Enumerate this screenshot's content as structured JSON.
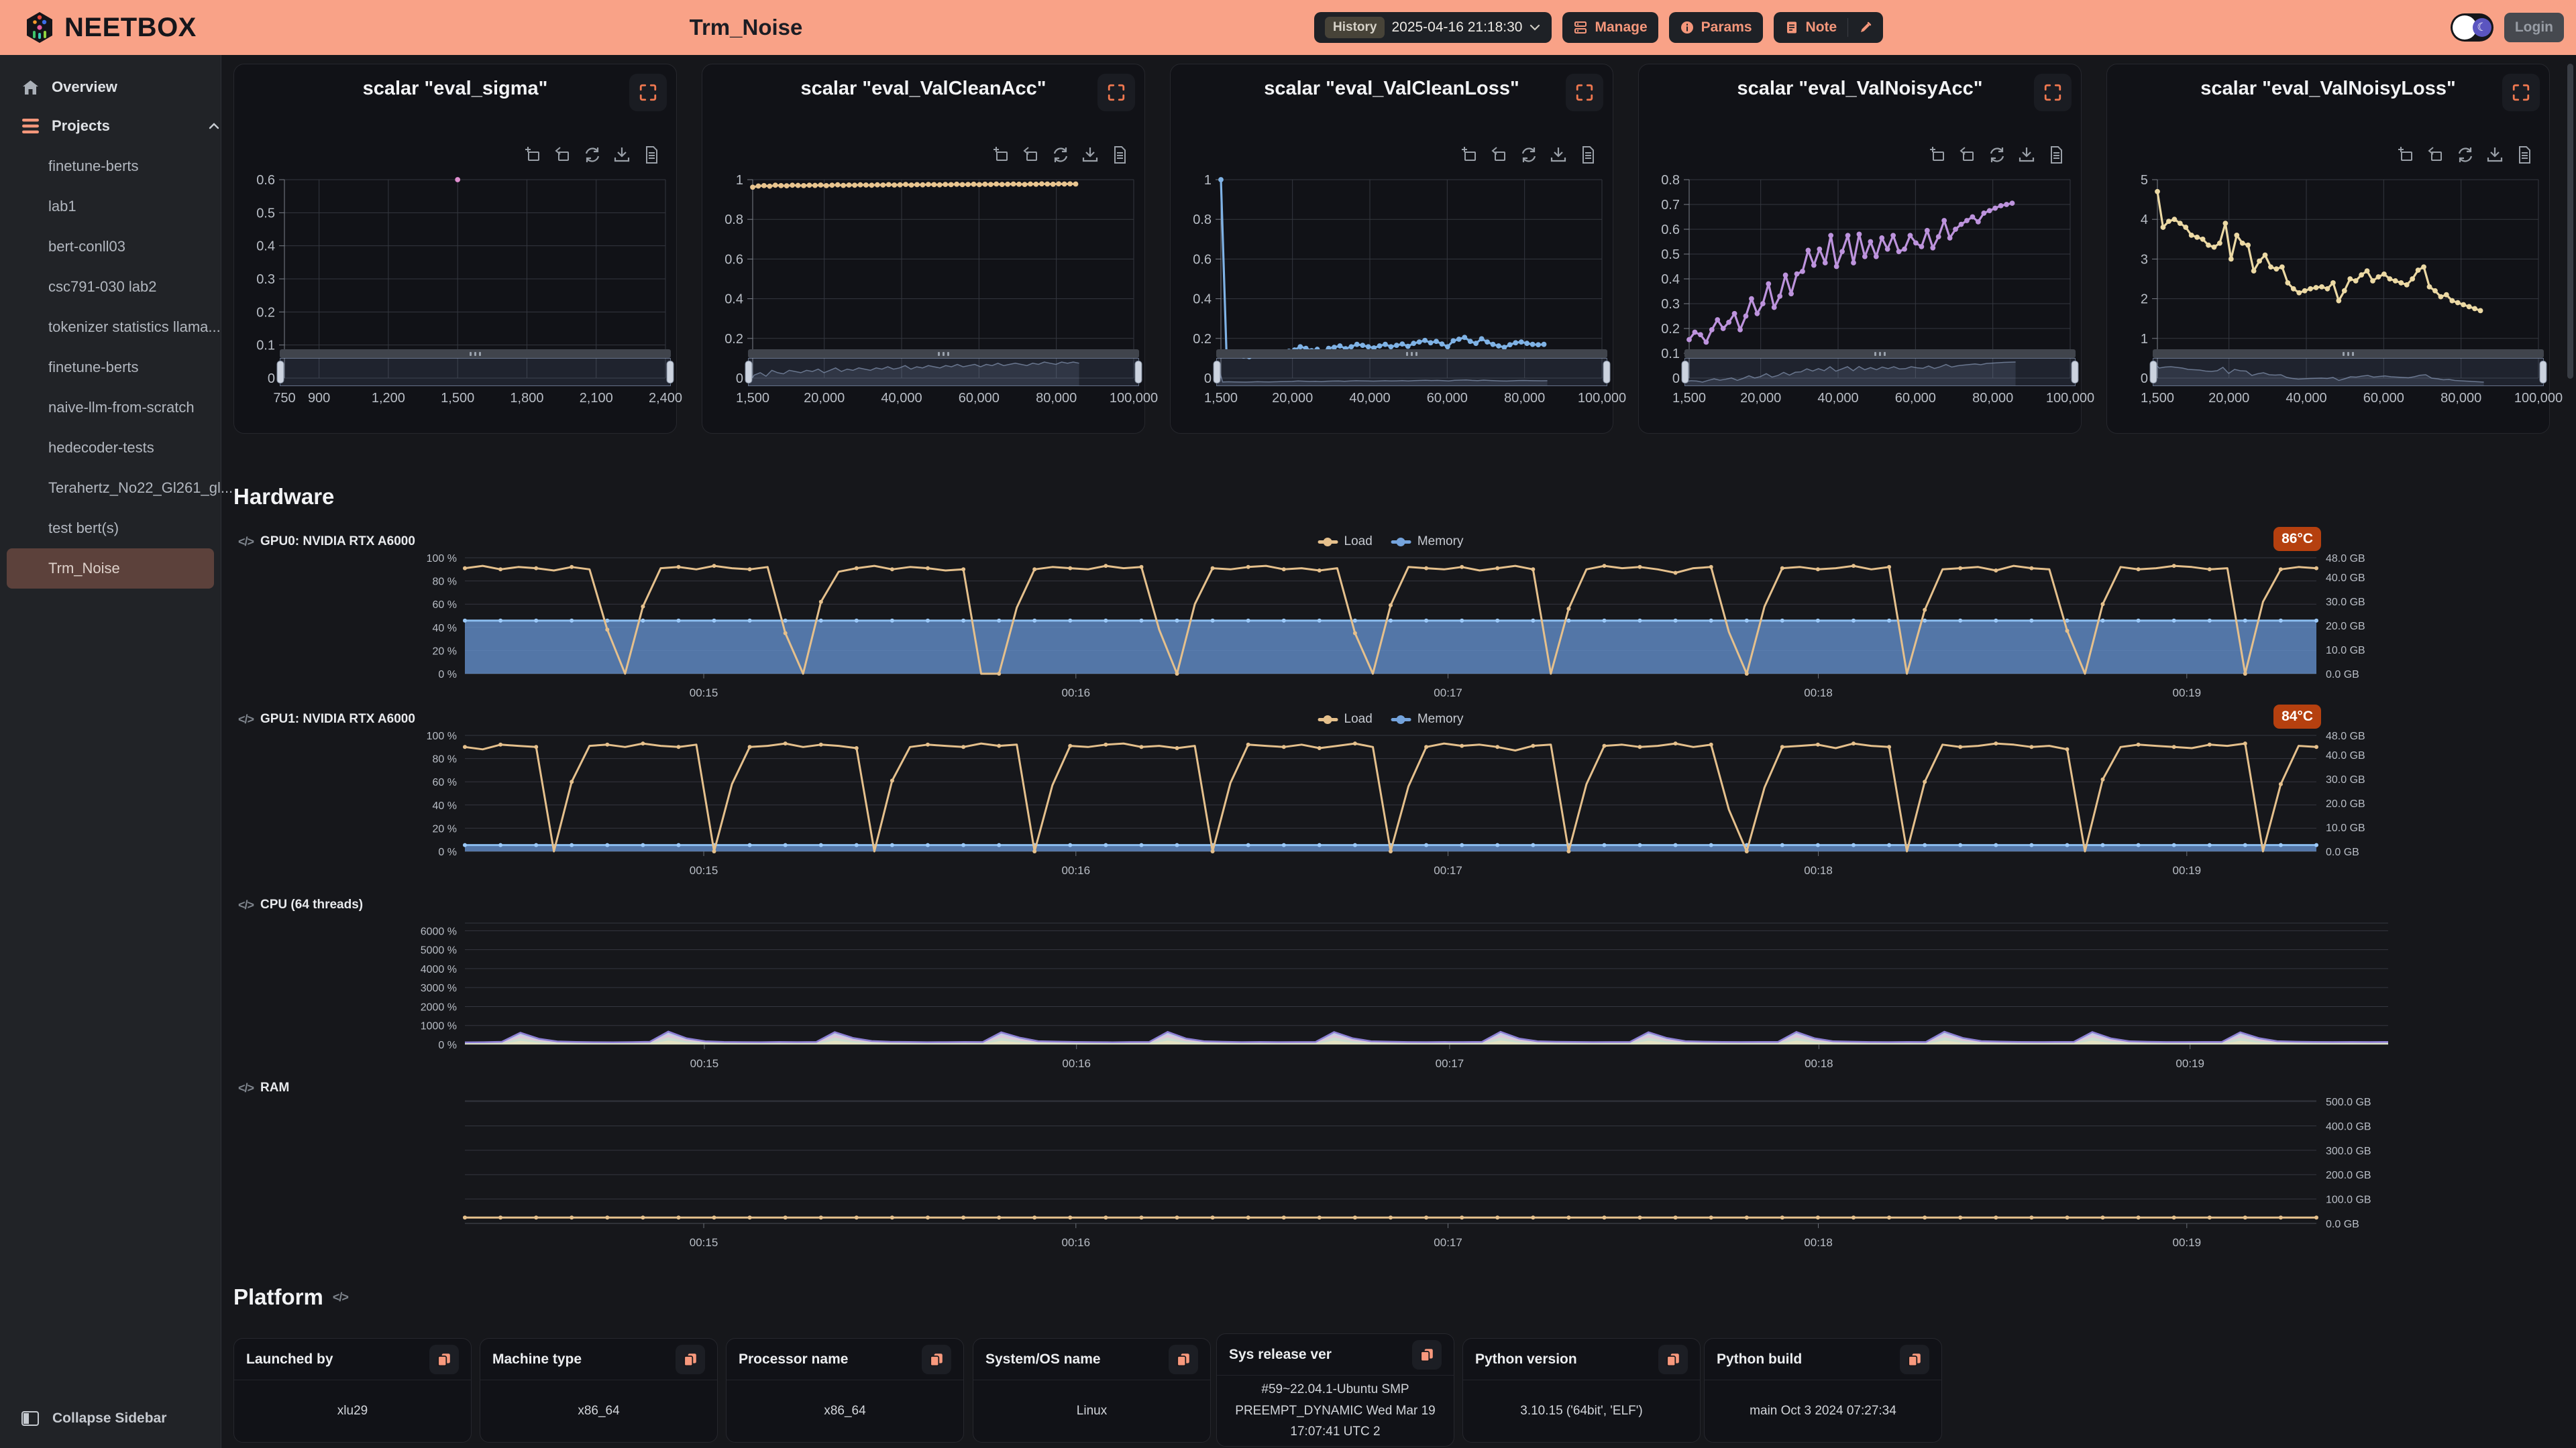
{
  "theme": {
    "header_bg": "#f9a287",
    "accent": "#f5977b",
    "temp_badge_bg": "#b5400f",
    "sidebar_bg": "#212327",
    "page_bg": "#16171b"
  },
  "header": {
    "brand": "NEETBOX",
    "title": "Trm_Noise",
    "history_label": "History",
    "history_value": "2025-04-16 21:18:30",
    "manage_label": "Manage",
    "params_label": "Params",
    "note_label": "Note",
    "login_label": "Login"
  },
  "sidebar": {
    "overview": "Overview",
    "projects_label": "Projects",
    "projects": [
      "finetune-berts",
      "lab1",
      "bert-conll03",
      "csc791-030 lab2",
      "tokenizer statistics llama...",
      "finetune-berts",
      "naive-llm-from-scratch",
      "hedecoder-tests",
      "Terahertz_No22_Gl261_gl...",
      "test bert(s)",
      "Trm_Noise"
    ],
    "selected": "Trm_Noise",
    "collapse": "Collapse Sidebar"
  },
  "sections": {
    "hardware": "Hardware",
    "platform": "Platform"
  },
  "hardware": {
    "gpu0": {
      "label": "GPU0: NVIDIA RTX A6000",
      "temp": "86°C",
      "legend_items": [
        {
          "label": "Load",
          "color": "#e5c08c"
        },
        {
          "label": "Memory",
          "color": "#74a3dc"
        }
      ]
    },
    "gpu1": {
      "label": "GPU1: NVIDIA RTX A6000",
      "temp": "84°C",
      "legend_items": [
        {
          "label": "Load",
          "color": "#e5c08c"
        },
        {
          "label": "Memory",
          "color": "#74a3dc"
        }
      ]
    },
    "cpu": {
      "label": "CPU (64 threads)"
    },
    "ram": {
      "label": "RAM"
    }
  },
  "platform": {
    "cards": [
      {
        "title": "Launched by",
        "value": "xlu29"
      },
      {
        "title": "Machine type",
        "value": "x86_64"
      },
      {
        "title": "Processor name",
        "value": "x86_64"
      },
      {
        "title": "System/OS name",
        "value": "Linux"
      },
      {
        "title": "Sys release ver",
        "value": "#59~22.04.1-Ubuntu SMP PREEMPT_DYNAMIC Wed Mar 19 17:07:41 UTC 2"
      },
      {
        "title": "Python version",
        "value": "3.10.15 ('64bit', 'ELF')"
      },
      {
        "title": "Python build",
        "value": "main Oct 3 2024 07:27:34"
      }
    ]
  },
  "chart_data": [
    {
      "id": "eval_sigma",
      "kind": "scalar",
      "type": "scatter",
      "title": "scalar \"eval_sigma\"",
      "x_range": [
        750,
        2400
      ],
      "x_ticks": [
        750,
        900,
        1200,
        1500,
        1800,
        2100,
        2400
      ],
      "y_range": [
        0,
        0.6
      ],
      "y_ticks": [
        0,
        0.1,
        0.2,
        0.3,
        0.4,
        0.5,
        0.6
      ],
      "series": [
        {
          "name": "eval_sigma",
          "color": "#e08fd0",
          "points": [
            [
              1500,
              0.6
            ]
          ]
        }
      ]
    },
    {
      "id": "eval_ValCleanAcc",
      "kind": "scalar",
      "type": "line",
      "title": "scalar \"eval_ValCleanAcc\"",
      "x_range": [
        1500,
        100000
      ],
      "x_ticks": [
        1500,
        20000,
        40000,
        60000,
        80000,
        100000
      ],
      "y_range": [
        0,
        1
      ],
      "y_ticks": [
        0,
        0.2,
        0.4,
        0.6,
        0.8,
        1
      ],
      "series": [
        {
          "name": "eval_ValCleanAcc",
          "color": "#e8c48f",
          "x_start": 1500,
          "x_step": 1465,
          "values": [
            0.962,
            0.968,
            0.97,
            0.967,
            0.972,
            0.97,
            0.969,
            0.972,
            0.971,
            0.97,
            0.972,
            0.971,
            0.973,
            0.97,
            0.972,
            0.974,
            0.971,
            0.973,
            0.972,
            0.974,
            0.973,
            0.972,
            0.974,
            0.973,
            0.975,
            0.973,
            0.974,
            0.976,
            0.973,
            0.975,
            0.974,
            0.976,
            0.975,
            0.974,
            0.976,
            0.975,
            0.977,
            0.975,
            0.976,
            0.977,
            0.975,
            0.977,
            0.976,
            0.978,
            0.976,
            0.977,
            0.978,
            0.977,
            0.976,
            0.978,
            0.977,
            0.979,
            0.978,
            0.977,
            0.979,
            0.978,
            0.979,
            0.978
          ]
        }
      ]
    },
    {
      "id": "eval_ValCleanLoss",
      "kind": "scalar",
      "type": "line",
      "title": "scalar \"eval_ValCleanLoss\"",
      "x_range": [
        1500,
        100000
      ],
      "x_ticks": [
        1500,
        20000,
        40000,
        60000,
        80000,
        100000
      ],
      "y_range": [
        0,
        1
      ],
      "y_ticks": [
        0,
        0.2,
        0.4,
        0.6,
        0.8,
        1
      ],
      "series": [
        {
          "name": "eval_ValCleanLoss",
          "color": "#7fb2e5",
          "x_start": 1500,
          "x_step": 1465,
          "values": [
            1.0,
            0.115,
            0.122,
            0.118,
            0.112,
            0.108,
            0.118,
            0.125,
            0.12,
            0.115,
            0.122,
            0.128,
            0.135,
            0.142,
            0.158,
            0.15,
            0.138,
            0.145,
            0.132,
            0.15,
            0.155,
            0.162,
            0.148,
            0.158,
            0.17,
            0.165,
            0.158,
            0.152,
            0.162,
            0.17,
            0.158,
            0.165,
            0.172,
            0.16,
            0.175,
            0.182,
            0.19,
            0.178,
            0.185,
            0.172,
            0.158,
            0.188,
            0.196,
            0.205,
            0.185,
            0.175,
            0.198,
            0.182,
            0.17,
            0.162,
            0.155,
            0.168,
            0.178,
            0.182,
            0.175,
            0.17,
            0.168,
            0.17
          ]
        }
      ]
    },
    {
      "id": "eval_ValNoisyAcc",
      "kind": "scalar",
      "type": "line",
      "title": "scalar \"eval_ValNoisyAcc\"",
      "x_range": [
        1500,
        100000
      ],
      "x_ticks": [
        1500,
        20000,
        40000,
        60000,
        80000,
        100000
      ],
      "y_range": [
        0,
        0.8
      ],
      "y_ticks": [
        0,
        0.1,
        0.2,
        0.3,
        0.4,
        0.5,
        0.6,
        0.7,
        0.8
      ],
      "series": [
        {
          "name": "eval_ValNoisyAcc",
          "color": "#bd93dd",
          "x_start": 1500,
          "x_step": 1465,
          "values": [
            0.155,
            0.185,
            0.175,
            0.145,
            0.195,
            0.235,
            0.2,
            0.225,
            0.26,
            0.195,
            0.25,
            0.32,
            0.26,
            0.3,
            0.38,
            0.285,
            0.33,
            0.415,
            0.34,
            0.42,
            0.43,
            0.515,
            0.455,
            0.52,
            0.465,
            0.575,
            0.45,
            0.51,
            0.575,
            0.465,
            0.58,
            0.49,
            0.55,
            0.49,
            0.565,
            0.52,
            0.575,
            0.51,
            0.52,
            0.575,
            0.545,
            0.53,
            0.595,
            0.525,
            0.57,
            0.635,
            0.565,
            0.6,
            0.62,
            0.635,
            0.65,
            0.63,
            0.665,
            0.675,
            0.685,
            0.695,
            0.7,
            0.705
          ]
        }
      ]
    },
    {
      "id": "eval_ValNoisyLoss",
      "kind": "scalar",
      "type": "line",
      "title": "scalar \"eval_ValNoisyLoss\"",
      "x_range": [
        1500,
        100000
      ],
      "x_ticks": [
        1500,
        20000,
        40000,
        60000,
        80000,
        100000
      ],
      "y_range": [
        0,
        5
      ],
      "y_ticks": [
        0,
        1,
        2,
        3,
        4,
        5
      ],
      "series": [
        {
          "name": "eval_ValNoisyLoss",
          "color": "#ecd9a4",
          "x_start": 1500,
          "x_step": 1465,
          "values": [
            4.7,
            3.8,
            3.95,
            4.0,
            3.9,
            3.8,
            3.6,
            3.55,
            3.5,
            3.35,
            3.3,
            3.4,
            3.9,
            3.0,
            3.6,
            3.4,
            3.35,
            2.7,
            2.95,
            3.1,
            2.8,
            2.75,
            2.8,
            2.4,
            2.25,
            2.15,
            2.2,
            2.25,
            2.28,
            2.3,
            2.25,
            2.4,
            1.95,
            2.2,
            2.5,
            2.45,
            2.6,
            2.7,
            2.45,
            2.55,
            2.62,
            2.5,
            2.45,
            2.4,
            2.35,
            2.5,
            2.72,
            2.8,
            2.3,
            2.2,
            2.05,
            2.1,
            1.95,
            1.9,
            1.85,
            1.8,
            1.75,
            1.7
          ]
        }
      ]
    },
    {
      "id": "gpu0",
      "kind": "hw",
      "type": "line",
      "left": {
        "range": [
          0,
          100
        ],
        "ticks": [
          0,
          20,
          40,
          60,
          80,
          100
        ]
      },
      "right": {
        "range": [
          0,
          48
        ],
        "ticks": [
          0,
          10,
          20,
          30,
          40,
          48
        ]
      },
      "x_ticks": [
        {
          "p": 0.129,
          "label": "00:15"
        },
        {
          "p": 0.33,
          "label": "00:16"
        },
        {
          "p": 0.531,
          "label": "00:17"
        },
        {
          "p": 0.731,
          "label": "00:18"
        },
        {
          "p": 0.93,
          "label": "00:19"
        }
      ],
      "series": [
        {
          "name": "Memory",
          "axis": "right",
          "type": "area",
          "color": "#8bbdf0",
          "fill": "rgba(99,143,202,0.8)",
          "symbol_color": "#9ccafa",
          "values": {
            "const": 22,
            "n": 105
          }
        },
        {
          "name": "Load",
          "axis": "left",
          "type": "line",
          "color": "#e5c08c",
          "values": [
            91,
            93,
            90,
            92,
            91,
            89,
            92,
            90,
            38,
            0,
            58,
            91,
            92,
            90,
            93,
            91,
            90,
            92,
            35,
            0,
            62,
            88,
            91,
            93,
            90,
            92,
            91,
            89,
            90,
            0,
            0,
            57,
            90,
            92,
            91,
            90,
            93,
            91,
            92,
            38,
            0,
            60,
            91,
            90,
            92,
            93,
            90,
            91,
            89,
            91,
            35,
            0,
            59,
            92,
            91,
            90,
            92,
            89,
            91,
            93,
            90,
            0,
            56,
            90,
            93,
            91,
            92,
            90,
            87,
            91,
            92,
            36,
            0,
            58,
            91,
            92,
            90,
            91,
            93,
            90,
            92,
            0,
            55,
            90,
            91,
            92,
            89,
            93,
            91,
            90,
            37,
            0,
            60,
            92,
            90,
            91,
            93,
            92,
            90,
            91,
            0,
            62,
            90,
            92,
            91
          ]
        }
      ]
    },
    {
      "id": "gpu1",
      "kind": "hw",
      "type": "line",
      "left": {
        "range": [
          0,
          100
        ],
        "ticks": [
          0,
          20,
          40,
          60,
          80,
          100
        ]
      },
      "right": {
        "range": [
          0,
          48
        ],
        "ticks": [
          0,
          10,
          20,
          30,
          40,
          48
        ]
      },
      "x_ticks": [
        {
          "p": 0.129,
          "label": "00:15"
        },
        {
          "p": 0.33,
          "label": "00:16"
        },
        {
          "p": 0.531,
          "label": "00:17"
        },
        {
          "p": 0.731,
          "label": "00:18"
        },
        {
          "p": 0.93,
          "label": "00:19"
        }
      ],
      "series": [
        {
          "name": "Memory",
          "axis": "right",
          "type": "area",
          "color": "#8bbdf0",
          "fill": "rgba(99,143,202,0.8)",
          "symbol_color": "#9ccafa",
          "values": {
            "const": 2.6,
            "n": 105
          }
        },
        {
          "name": "Load",
          "axis": "left",
          "type": "line",
          "color": "#e5c08c",
          "values": [
            90,
            88,
            92,
            91,
            90,
            0,
            60,
            91,
            92,
            90,
            93,
            91,
            90,
            92,
            0,
            58,
            90,
            91,
            93,
            90,
            92,
            91,
            89,
            0,
            61,
            90,
            92,
            91,
            90,
            93,
            91,
            92,
            0,
            57,
            91,
            90,
            92,
            93,
            90,
            91,
            89,
            91,
            0,
            59,
            92,
            91,
            90,
            92,
            89,
            91,
            93,
            90,
            0,
            56,
            90,
            93,
            91,
            92,
            90,
            87,
            91,
            92,
            0,
            58,
            91,
            92,
            90,
            91,
            93,
            90,
            92,
            36,
            0,
            55,
            90,
            91,
            92,
            89,
            93,
            91,
            90,
            0,
            60,
            92,
            90,
            91,
            93,
            92,
            90,
            91,
            88,
            0,
            62,
            90,
            92,
            91,
            90,
            89,
            92,
            91,
            93,
            0,
            58,
            91,
            90
          ]
        }
      ]
    },
    {
      "id": "cpu",
      "kind": "hw-stacked",
      "type": "area",
      "left": {
        "range": [
          0,
          6400
        ],
        "ticks": [
          0,
          1000,
          2000,
          3000,
          4000,
          5000,
          6000
        ]
      },
      "x_ticks": [
        {
          "p": 0.1245,
          "label": "00:15"
        },
        {
          "p": 0.318,
          "label": "00:16"
        },
        {
          "p": 0.512,
          "label": "00:17"
        },
        {
          "p": 0.704,
          "label": "00:18"
        },
        {
          "p": 0.897,
          "label": "00:19"
        }
      ],
      "total": [
        110,
        120,
        140,
        620,
        300,
        160,
        130,
        120,
        115,
        125,
        140,
        680,
        320,
        170,
        135,
        125,
        120,
        130,
        125,
        135,
        650,
        340,
        180,
        140,
        130,
        120,
        125,
        135,
        128,
        640,
        360,
        175,
        150,
        130,
        125,
        118,
        128,
        132,
        665,
        310,
        165,
        140,
        125,
        130,
        122,
        128,
        135,
        655,
        330,
        170,
        145,
        128,
        122,
        132,
        126,
        138,
        670,
        315,
        168,
        142,
        130,
        124,
        128,
        134,
        648,
        338,
        172,
        146,
        132,
        126,
        130,
        136,
        660,
        320,
        166,
        144,
        128,
        125,
        133,
        128,
        672,
        342,
        176,
        148,
        134,
        127,
        131,
        138,
        655,
        325,
        170,
        143,
        129,
        126,
        134,
        130,
        642,
        335,
        174,
        145,
        131,
        127,
        133,
        129,
        136
      ],
      "bands": [
        {
          "color": "#e8e3c0",
          "frac": 0.3
        },
        {
          "color": "#c8e0cc",
          "frac": 0.26
        },
        {
          "color": "#e4c4d6",
          "frac": 0.2
        },
        {
          "color": "#c2d2ea",
          "frac": 0.14
        },
        {
          "color": "#d4c8ec",
          "frac": 0.1
        }
      ],
      "stroke": "#8d7fd4"
    },
    {
      "id": "ram",
      "kind": "hw",
      "type": "line",
      "left": null,
      "right": {
        "range": [
          0,
          503
        ],
        "ticks": [
          0,
          100,
          200,
          300,
          400,
          500
        ]
      },
      "x_ticks": [
        {
          "p": 0.129,
          "label": "00:15"
        },
        {
          "p": 0.33,
          "label": "00:16"
        },
        {
          "p": 0.531,
          "label": "00:17"
        },
        {
          "p": 0.731,
          "label": "00:18"
        },
        {
          "p": 0.93,
          "label": "00:19"
        }
      ],
      "series": [
        {
          "name": "RAM used",
          "axis": "right",
          "type": "line",
          "color": "#e5c08c",
          "values": {
            "const": 24,
            "n": 105
          }
        }
      ]
    }
  ]
}
